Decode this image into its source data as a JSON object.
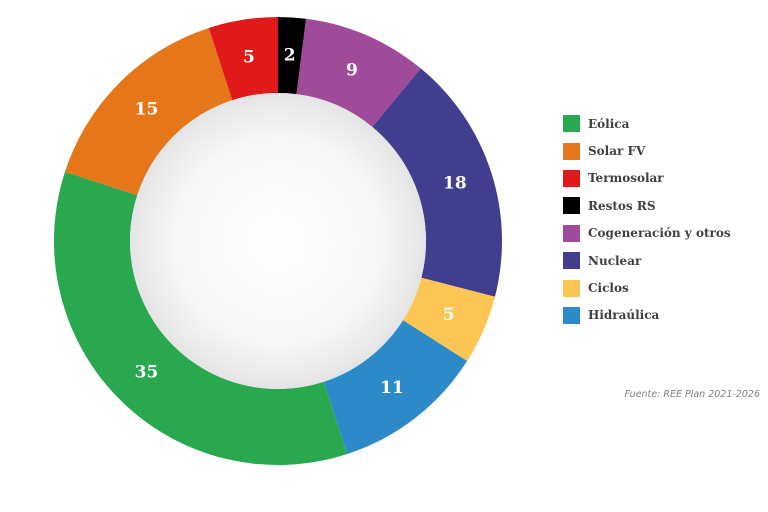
{
  "chart_data": {
    "type": "pie",
    "variant": "donut",
    "title": "",
    "categories": [
      "Eólica",
      "Solar FV",
      "Termosolar",
      "Restos RS",
      "Cogeneración y otros",
      "Nuclear",
      "Ciclos",
      "Hidraúlica"
    ],
    "values": [
      35,
      15,
      5,
      2,
      9,
      18,
      5,
      11
    ],
    "colors": [
      "#2aa84f",
      "#e6761a",
      "#e01a1a",
      "#000000",
      "#a04a9a",
      "#413e8f",
      "#fcc655",
      "#2d8ac8"
    ],
    "data_labels": [
      "35",
      "15",
      "5",
      "2",
      "9",
      "18",
      "5",
      "11"
    ],
    "legend_position": "right"
  },
  "source_note": "Fuente: REE Plan 2021-2026"
}
